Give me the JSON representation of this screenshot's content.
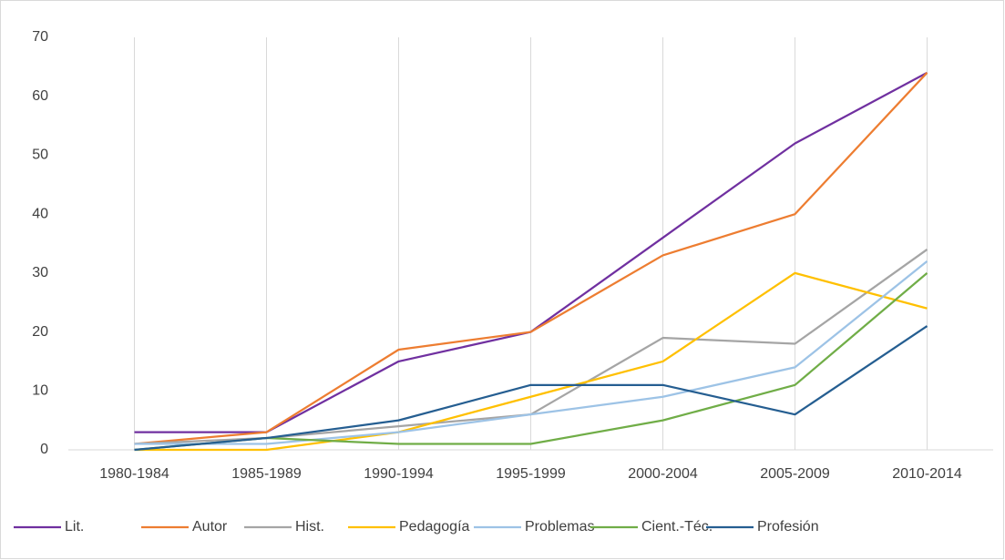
{
  "chart_data": {
    "type": "line",
    "categories": [
      "1980-1984",
      "1985-1989",
      "1990-1994",
      "1995-1999",
      "2000-2004",
      "2005-2009",
      "2010-2014"
    ],
    "series": [
      {
        "name": "Lit.",
        "color": "#7030a0",
        "values": [
          3,
          3,
          15,
          20,
          36,
          52,
          64
        ]
      },
      {
        "name": "Autor",
        "color": "#ed7d31",
        "values": [
          1,
          3,
          17,
          20,
          33,
          40,
          64
        ]
      },
      {
        "name": "Hist.",
        "color": "#a5a5a5",
        "values": [
          1,
          2,
          4,
          6,
          19,
          18,
          34
        ]
      },
      {
        "name": "Pedagogía",
        "color": "#ffc000",
        "values": [
          0,
          0,
          3,
          9,
          15,
          30,
          24
        ]
      },
      {
        "name": "Problemas",
        "color": "#9dc3e6",
        "values": [
          1,
          1,
          3,
          6,
          9,
          14,
          32
        ]
      },
      {
        "name": "Cient.-Téc.",
        "color": "#70ad47",
        "values": [
          0,
          2,
          1,
          1,
          5,
          11,
          30
        ]
      },
      {
        "name": "Profesión",
        "color": "#255e91",
        "values": [
          0,
          2,
          5,
          11,
          11,
          6,
          21
        ]
      }
    ],
    "ylim": [
      0,
      70
    ],
    "yticks": [
      0,
      10,
      20,
      30,
      40,
      50,
      60,
      70
    ],
    "grid": true,
    "legend": "bottom"
  }
}
